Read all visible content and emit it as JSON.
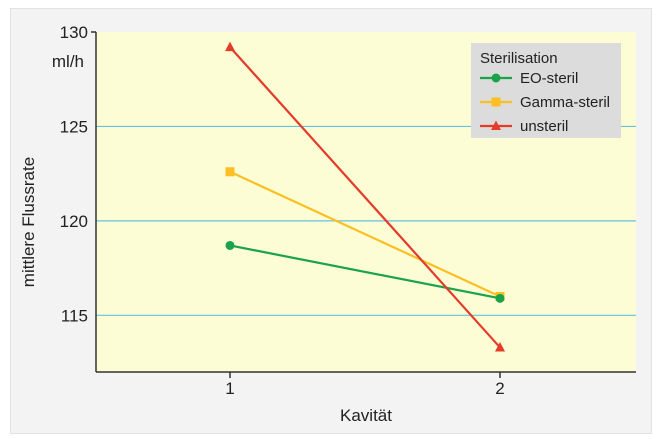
{
  "chart_data": {
    "type": "line",
    "title": "",
    "xlabel": "Kavität",
    "ylabel": "mittlere Flussrate",
    "yunit": "ml/h",
    "categories": [
      "1",
      "2"
    ],
    "ylim": [
      112,
      130
    ],
    "yticks": [
      115,
      120,
      125,
      130
    ],
    "grid": "horizontal",
    "legend": {
      "title": "Sterilisation",
      "placement": "top-right"
    },
    "series": [
      {
        "name": "EO-steril",
        "values": [
          118.7,
          115.9
        ],
        "color": "#1aa34a",
        "marker": "circle"
      },
      {
        "name": "Gamma-steril",
        "values": [
          122.6,
          116.0
        ],
        "color": "#fbbf24",
        "marker": "square"
      },
      {
        "name": "unsteril",
        "values": [
          129.2,
          113.3
        ],
        "color": "#e53b2a",
        "marker": "triangle"
      }
    ],
    "colors": {
      "plot_background": "#fcfdd4",
      "gridline": "#66c2df",
      "legend_background": "#dcdcdc"
    }
  }
}
